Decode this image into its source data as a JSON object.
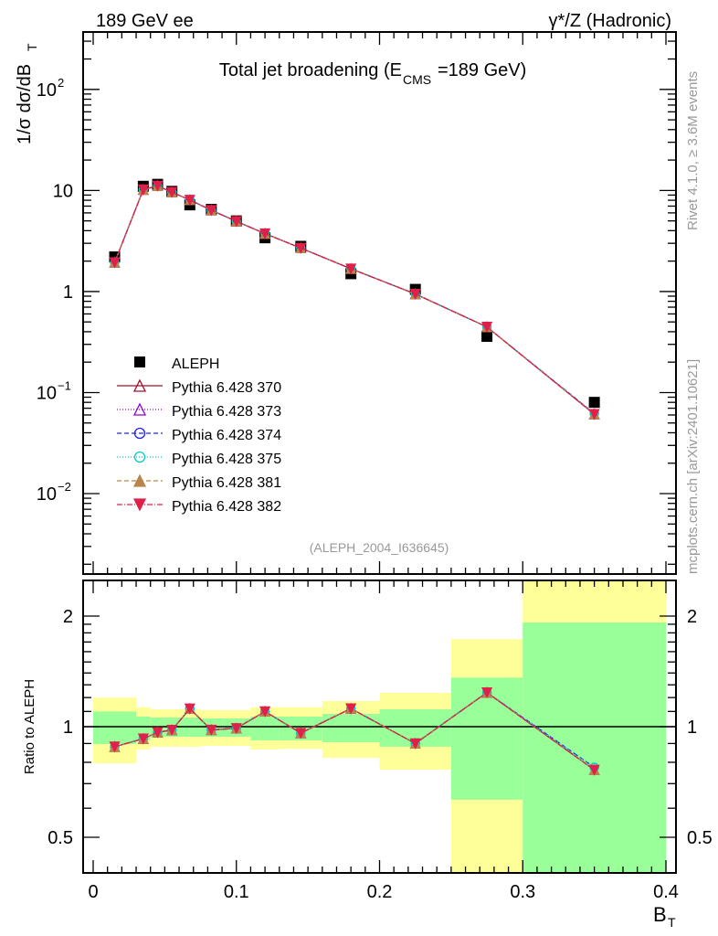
{
  "header": {
    "left": "189 GeV ee",
    "right": "γ*/Z (Hadronic)"
  },
  "side_text": {
    "rivet": "Rivet 4.1.0, ≥ 3.6M events",
    "mcplots": "mcplots.cern.ch [arXiv:2401.10621]"
  },
  "chart_data": [
    {
      "type": "line",
      "title": "Total jet broadening (E",
      "title_sub": "CMS",
      "title_end": "=189 GeV)",
      "ylabel": "1/σ  dσ/dB",
      "ylabel_sub": "T",
      "yscale": "log",
      "ylim": [
        0.0016,
        370
      ],
      "xlim": [
        -0.007,
        0.407
      ],
      "analysis_tag": "(ALEPH_2004_I636645)",
      "yticks": [
        {
          "v": 100,
          "label": "10",
          "sup": "2"
        },
        {
          "v": 10,
          "label": "10",
          "sup": ""
        },
        {
          "v": 1,
          "label": "1",
          "sup": ""
        },
        {
          "v": 0.1,
          "label": "10",
          "sup": "−1"
        },
        {
          "v": 0.01,
          "label": "10",
          "sup": "−2"
        }
      ],
      "legend_position": "center-left",
      "x": [
        0.015,
        0.035,
        0.045,
        0.055,
        0.0675,
        0.0825,
        0.1,
        0.12,
        0.145,
        0.18,
        0.225,
        0.275,
        0.35
      ],
      "data": {
        "name": "ALEPH",
        "color": "#000000",
        "values": [
          2.2,
          11.0,
          11.5,
          9.8,
          7.2,
          6.5,
          5.0,
          3.4,
          2.8,
          1.5,
          1.05,
          0.36,
          0.08
        ]
      },
      "series": [
        {
          "name": "Pythia 6.428 370",
          "color": "#a0102a",
          "marker": "triangle-open",
          "dash": "",
          "values": [
            1.94,
            10.2,
            11.1,
            9.6,
            8.06,
            6.37,
            4.95,
            3.74,
            2.69,
            1.68,
            0.945,
            0.446,
            0.061
          ]
        },
        {
          "name": "Pythia 6.428 373",
          "color": "#9400d3",
          "marker": "triangle-open",
          "dash": "1,2",
          "values": [
            1.94,
            10.2,
            11.1,
            9.6,
            8.06,
            6.37,
            4.95,
            3.74,
            2.69,
            1.68,
            0.945,
            0.446,
            0.061
          ]
        },
        {
          "name": "Pythia 6.428 374",
          "color": "#2020ee",
          "marker": "circle-open",
          "dash": "5,3",
          "values": [
            1.94,
            10.2,
            11.1,
            9.6,
            8.06,
            6.37,
            4.95,
            3.74,
            2.69,
            1.68,
            0.945,
            0.446,
            0.062
          ]
        },
        {
          "name": "Pythia 6.428 375",
          "color": "#00d0c0",
          "marker": "circle-open",
          "dash": "1,2",
          "values": [
            1.94,
            10.2,
            11.1,
            9.6,
            8.06,
            6.37,
            4.95,
            3.74,
            2.69,
            1.68,
            0.945,
            0.446,
            0.062
          ]
        },
        {
          "name": "Pythia 6.428 381",
          "color": "#b8864b",
          "marker": "triangle-filled",
          "dash": "5,3",
          "values": [
            1.94,
            10.2,
            11.1,
            9.6,
            8.06,
            6.37,
            4.95,
            3.74,
            2.69,
            1.68,
            0.945,
            0.446,
            0.061
          ]
        },
        {
          "name": "Pythia 6.428 382",
          "color": "#e0204a",
          "marker": "triangle-down-filled",
          "dash": "6,2,1,2",
          "values": [
            1.94,
            10.2,
            11.1,
            9.6,
            8.06,
            6.37,
            4.95,
            3.74,
            2.69,
            1.68,
            0.945,
            0.446,
            0.061
          ]
        }
      ]
    },
    {
      "type": "line",
      "ylabel": "Ratio to ALEPH",
      "xlabel": "B",
      "xlabel_sub": "T",
      "yscale": "log",
      "ylim": [
        0.4,
        2.5
      ],
      "xticks": [
        {
          "v": 0,
          "label": "0"
        },
        {
          "v": 0.1,
          "label": "0.1"
        },
        {
          "v": 0.2,
          "label": "0.2"
        },
        {
          "v": 0.3,
          "label": "0.3"
        },
        {
          "v": 0.4,
          "label": "0.4"
        }
      ],
      "yticks": [
        {
          "v": 2,
          "label": "2"
        },
        {
          "v": 1,
          "label": "1"
        },
        {
          "v": 0.5,
          "label": "0.5"
        }
      ],
      "bin_edges": [
        0,
        0.03,
        0.04,
        0.05,
        0.06,
        0.075,
        0.09,
        0.11,
        0.13,
        0.16,
        0.2,
        0.25,
        0.3,
        0.4
      ],
      "band_colors": {
        "inner": "#99ff99",
        "outer": "#ffff99"
      },
      "band_inner": [
        [
          0.897,
          1.1
        ],
        [
          0.918,
          1.065
        ],
        [
          0.939,
          1.059
        ],
        [
          0.939,
          1.059
        ],
        [
          0.939,
          1.059
        ],
        [
          0.939,
          1.053
        ],
        [
          0.939,
          1.053
        ],
        [
          0.918,
          1.065
        ],
        [
          0.918,
          1.065
        ],
        [
          0.907,
          1.083
        ],
        [
          0.882,
          1.115
        ],
        [
          0.633,
          1.36
        ],
        [
          0.2,
          1.92
        ]
      ],
      "band_outer": [
        [
          0.795,
          1.2
        ],
        [
          0.867,
          1.13
        ],
        [
          0.882,
          1.115
        ],
        [
          0.882,
          1.115
        ],
        [
          0.882,
          1.115
        ],
        [
          0.887,
          1.109
        ],
        [
          0.887,
          1.109
        ],
        [
          0.867,
          1.13
        ],
        [
          0.87,
          1.13
        ],
        [
          0.823,
          1.174
        ],
        [
          0.764,
          1.236
        ],
        [
          0.3,
          1.73
        ],
        [
          0.2,
          3.0
        ]
      ]
    }
  ]
}
